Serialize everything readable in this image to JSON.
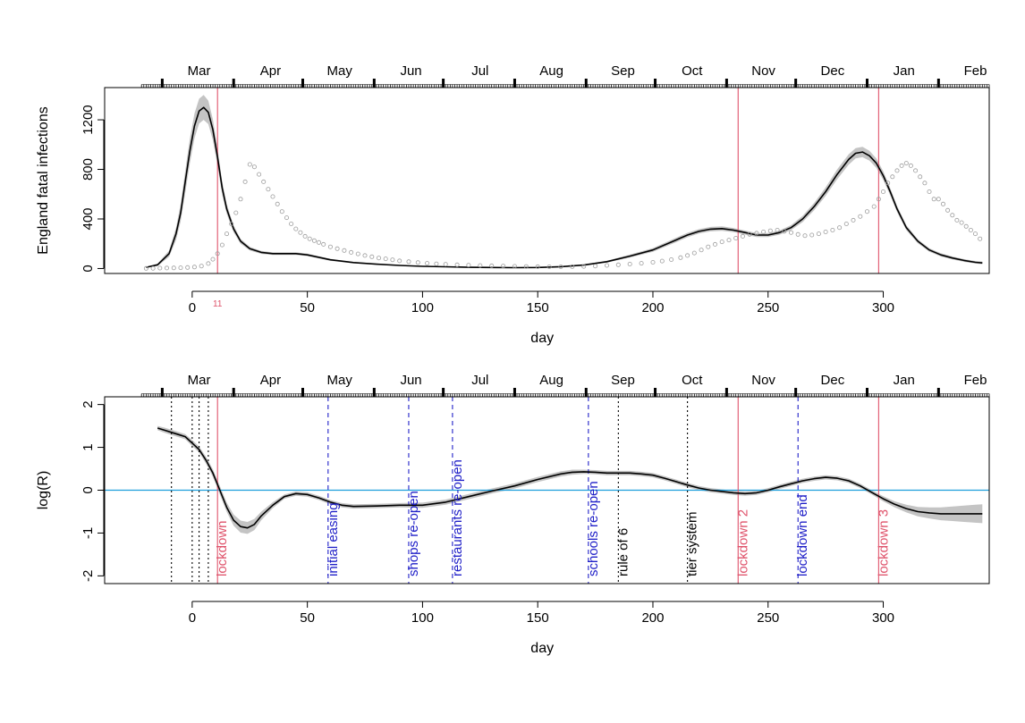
{
  "chart_data": [
    {
      "type": "line",
      "ylabel": "England fatal infections",
      "xlabel": "day",
      "xlim": [
        -38,
        346
      ],
      "ylim": [
        -40,
        1460
      ],
      "x_ticks": [
        0,
        50,
        100,
        150,
        200,
        250,
        300
      ],
      "y_ticks": [
        0,
        400,
        800,
        1200
      ],
      "month_labels": [
        "Mar",
        "Apr",
        "May",
        "Jun",
        "Jul",
        "Aug",
        "Sep",
        "Oct",
        "Nov",
        "Dec",
        "Jan",
        "Feb"
      ],
      "month_label_days": [
        3,
        34,
        64,
        95,
        125,
        156,
        187,
        217,
        248,
        278,
        309,
        340
      ],
      "month_boundary_days": [
        -13,
        18,
        48,
        79,
        109,
        140,
        171,
        201,
        232,
        262,
        293,
        324
      ],
      "day_axis_start": -22,
      "vlines": [
        {
          "day": 11,
          "color": "#DF536B",
          "label": "11"
        },
        {
          "day": 237,
          "color": "#DF536B"
        },
        {
          "day": 298,
          "color": "#DF536B"
        }
      ],
      "series": [
        {
          "style": "line-with-band",
          "color": "#000000",
          "band_color": "#BEBEBE",
          "x": [
            -20,
            -15,
            -10,
            -7,
            -5,
            -3,
            -1,
            1,
            3,
            5,
            7,
            9,
            11,
            13,
            15,
            18,
            21,
            25,
            30,
            35,
            40,
            45,
            50,
            60,
            70,
            80,
            90,
            100,
            110,
            120,
            130,
            140,
            150,
            160,
            170,
            180,
            190,
            200,
            210,
            215,
            220,
            225,
            230,
            235,
            240,
            245,
            250,
            255,
            260,
            265,
            270,
            275,
            280,
            285,
            288,
            291,
            294,
            297,
            300,
            303,
            306,
            310,
            315,
            320,
            325,
            330,
            335,
            340,
            343
          ],
          "values": [
            10,
            30,
            120,
            280,
            450,
            700,
            950,
            1150,
            1270,
            1300,
            1260,
            1120,
            900,
            650,
            480,
            320,
            220,
            160,
            130,
            120,
            120,
            120,
            110,
            70,
            48,
            35,
            25,
            18,
            14,
            10,
            8,
            7,
            8,
            15,
            28,
            55,
            100,
            150,
            230,
            270,
            300,
            318,
            322,
            310,
            290,
            270,
            270,
            290,
            330,
            400,
            500,
            620,
            760,
            880,
            930,
            940,
            910,
            850,
            750,
            620,
            480,
            330,
            220,
            150,
            110,
            85,
            65,
            50,
            45
          ],
          "band_half_width": [
            4,
            10,
            25,
            50,
            70,
            90,
            100,
            100,
            100,
            100,
            95,
            85,
            70,
            55,
            40,
            28,
            20,
            15,
            12,
            10,
            10,
            10,
            10,
            8,
            6,
            5,
            4,
            3,
            3,
            2,
            2,
            2,
            2,
            3,
            5,
            8,
            12,
            15,
            18,
            18,
            18,
            18,
            18,
            17,
            16,
            16,
            16,
            17,
            20,
            25,
            30,
            35,
            40,
            42,
            42,
            42,
            40,
            38,
            35,
            30,
            25,
            20,
            16,
            14,
            13,
            12,
            11,
            10,
            10
          ]
        },
        {
          "style": "points",
          "color": "#9E9E9E",
          "x": [
            -20,
            -17,
            -14,
            -11,
            -8,
            -5,
            -2,
            1,
            4,
            7,
            9,
            11,
            13,
            15,
            17,
            19,
            21,
            23,
            25,
            27,
            29,
            31,
            33,
            35,
            37,
            39,
            41,
            43,
            45,
            47,
            49,
            51,
            53,
            55,
            57,
            60,
            63,
            66,
            69,
            72,
            75,
            78,
            81,
            84,
            87,
            90,
            94,
            98,
            102,
            106,
            110,
            115,
            120,
            125,
            130,
            135,
            140,
            145,
            150,
            155,
            160,
            165,
            170,
            175,
            180,
            185,
            190,
            195,
            200,
            204,
            208,
            212,
            215,
            218,
            221,
            224,
            227,
            230,
            233,
            236,
            239,
            242,
            245,
            248,
            251,
            254,
            257,
            260,
            263,
            266,
            269,
            272,
            275,
            278,
            281,
            284,
            287,
            290,
            293,
            296,
            298,
            300,
            302,
            304,
            306,
            308,
            310,
            312,
            314,
            316,
            318,
            320,
            322,
            324,
            326,
            328,
            330,
            332,
            334,
            336,
            338,
            340,
            342
          ],
          "values": [
            1,
            2,
            3,
            4,
            5,
            6,
            8,
            12,
            20,
            40,
            75,
            120,
            190,
            280,
            360,
            450,
            560,
            700,
            840,
            820,
            760,
            700,
            640,
            580,
            520,
            460,
            410,
            360,
            320,
            290,
            260,
            240,
            225,
            210,
            195,
            175,
            160,
            145,
            130,
            118,
            105,
            95,
            85,
            78,
            70,
            62,
            55,
            48,
            42,
            38,
            34,
            30,
            27,
            24,
            22,
            20,
            18,
            16,
            15,
            14,
            14,
            15,
            17,
            20,
            25,
            30,
            36,
            42,
            50,
            60,
            72,
            88,
            105,
            125,
            150,
            175,
            195,
            215,
            230,
            245,
            260,
            275,
            285,
            295,
            305,
            310,
            300,
            290,
            275,
            265,
            270,
            280,
            295,
            310,
            330,
            360,
            390,
            420,
            460,
            500,
            560,
            620,
            690,
            740,
            790,
            830,
            850,
            830,
            790,
            740,
            690,
            620,
            560,
            560,
            520,
            470,
            430,
            390,
            370,
            340,
            310,
            280,
            240
          ]
        }
      ]
    },
    {
      "type": "line",
      "ylabel": "log(R)",
      "xlabel": "day",
      "xlim": [
        -38,
        346
      ],
      "ylim": [
        -2.18,
        2.18
      ],
      "x_ticks": [
        0,
        50,
        100,
        150,
        200,
        250,
        300
      ],
      "y_ticks": [
        -2,
        -1,
        0,
        1,
        2
      ],
      "month_labels": [
        "Mar",
        "Apr",
        "May",
        "Jun",
        "Jul",
        "Aug",
        "Sep",
        "Oct",
        "Nov",
        "Dec",
        "Jan",
        "Feb"
      ],
      "month_label_days": [
        3,
        34,
        64,
        95,
        125,
        156,
        187,
        217,
        248,
        278,
        309,
        340
      ],
      "month_boundary_days": [
        -13,
        18,
        48,
        79,
        109,
        140,
        171,
        201,
        232,
        262,
        293,
        324
      ],
      "day_axis_start": -22,
      "hline": {
        "value": 0,
        "color": "#1E9EDC"
      },
      "vlines": [
        {
          "day": -9,
          "color": "#000000",
          "style": "dotted"
        },
        {
          "day": 0,
          "color": "#000000",
          "style": "dotted"
        },
        {
          "day": 3,
          "color": "#000000",
          "style": "dotted"
        },
        {
          "day": 7,
          "color": "#000000",
          "style": "dotted"
        },
        {
          "day": 11,
          "color": "#DF536B",
          "style": "solid",
          "label": "lockdown"
        },
        {
          "day": 59,
          "color": "#2020C8",
          "style": "dashed",
          "label": "initial easing"
        },
        {
          "day": 94,
          "color": "#2020C8",
          "style": "dashed",
          "label": "shops re-open"
        },
        {
          "day": 113,
          "color": "#2020C8",
          "style": "dashed",
          "label": "restaurants re-open"
        },
        {
          "day": 172,
          "color": "#2020C8",
          "style": "dashed",
          "label": "schools re-open"
        },
        {
          "day": 185,
          "color": "#000000",
          "style": "dotted",
          "label": "rule of 6"
        },
        {
          "day": 215,
          "color": "#000000",
          "style": "dotted",
          "label": "tier system"
        },
        {
          "day": 237,
          "color": "#DF536B",
          "style": "solid",
          "label": "lockdown 2"
        },
        {
          "day": 263,
          "color": "#2020C8",
          "style": "dashed",
          "label": "lockdown end"
        },
        {
          "day": 298,
          "color": "#DF536B",
          "style": "solid",
          "label": "lockdown 3"
        }
      ],
      "series": [
        {
          "style": "line-with-band",
          "color": "#000000",
          "band_color": "#BEBEBE",
          "x": [
            -15,
            -12,
            -9,
            -6,
            -3,
            0,
            3,
            6,
            9,
            12,
            15,
            18,
            21,
            24,
            27,
            30,
            35,
            40,
            45,
            50,
            55,
            60,
            65,
            70,
            80,
            90,
            100,
            110,
            120,
            130,
            140,
            150,
            160,
            165,
            170,
            175,
            180,
            185,
            190,
            195,
            200,
            205,
            210,
            215,
            220,
            225,
            230,
            235,
            240,
            245,
            250,
            255,
            260,
            265,
            270,
            275,
            280,
            285,
            290,
            295,
            300,
            305,
            310,
            315,
            320,
            325,
            330,
            335,
            340,
            343
          ],
          "values": [
            1.45,
            1.4,
            1.35,
            1.3,
            1.25,
            1.1,
            0.95,
            0.7,
            0.4,
            0.0,
            -0.4,
            -0.7,
            -0.85,
            -0.88,
            -0.8,
            -0.6,
            -0.35,
            -0.15,
            -0.08,
            -0.1,
            -0.18,
            -0.28,
            -0.35,
            -0.38,
            -0.37,
            -0.35,
            -0.35,
            -0.28,
            -0.15,
            -0.02,
            0.1,
            0.25,
            0.38,
            0.42,
            0.43,
            0.42,
            0.4,
            0.4,
            0.4,
            0.38,
            0.35,
            0.28,
            0.2,
            0.12,
            0.05,
            0.0,
            -0.03,
            -0.06,
            -0.08,
            -0.06,
            0.0,
            0.08,
            0.15,
            0.22,
            0.27,
            0.3,
            0.28,
            0.22,
            0.1,
            -0.05,
            -0.2,
            -0.33,
            -0.43,
            -0.5,
            -0.53,
            -0.55,
            -0.55,
            -0.55,
            -0.55,
            -0.55
          ],
          "band_half_width": [
            0.05,
            0.06,
            0.06,
            0.06,
            0.06,
            0.07,
            0.07,
            0.08,
            0.09,
            0.1,
            0.11,
            0.13,
            0.14,
            0.14,
            0.13,
            0.1,
            0.07,
            0.05,
            0.05,
            0.05,
            0.05,
            0.05,
            0.05,
            0.05,
            0.05,
            0.05,
            0.06,
            0.06,
            0.06,
            0.06,
            0.06,
            0.06,
            0.06,
            0.06,
            0.05,
            0.05,
            0.05,
            0.05,
            0.05,
            0.05,
            0.05,
            0.05,
            0.05,
            0.05,
            0.05,
            0.05,
            0.05,
            0.05,
            0.05,
            0.05,
            0.05,
            0.05,
            0.05,
            0.05,
            0.05,
            0.05,
            0.05,
            0.05,
            0.05,
            0.05,
            0.06,
            0.07,
            0.09,
            0.11,
            0.13,
            0.15,
            0.17,
            0.19,
            0.21,
            0.22
          ]
        }
      ]
    }
  ]
}
